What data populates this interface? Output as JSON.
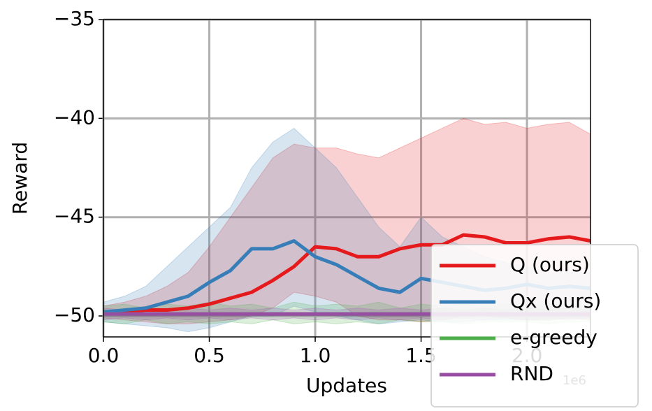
{
  "chart_data": {
    "type": "line",
    "xlabel": "Updates",
    "ylabel": "Reward",
    "x_offset_label": "1e6",
    "x": [
      0.0,
      0.1,
      0.2,
      0.3,
      0.4,
      0.5,
      0.6,
      0.7,
      0.8,
      0.9,
      1.0,
      1.1,
      1.2,
      1.3,
      1.4,
      1.5,
      1.6,
      1.7,
      1.8,
      1.9,
      2.0,
      2.1,
      2.2,
      2.3
    ],
    "xlim": [
      0,
      2.3
    ],
    "xticks": [
      {
        "value": 0,
        "label": "0.0"
      },
      {
        "value": 0.5,
        "label": "0.5"
      },
      {
        "value": 1,
        "label": "1.0"
      },
      {
        "value": 1.5,
        "label": "1.5"
      },
      {
        "value": 2,
        "label": "2.0"
      }
    ],
    "ylim": [
      -51.06,
      -35
    ],
    "yticks": [
      {
        "value": -35,
        "label": "−35"
      },
      {
        "value": -40,
        "label": "−40"
      },
      {
        "value": -45,
        "label": "−45"
      },
      {
        "value": -50,
        "label": "−50"
      }
    ],
    "grid": true,
    "legend": "lower right",
    "series": [
      {
        "name": "Q (ours)",
        "color": "#e41a1c",
        "values": [
          -49.8,
          -49.8,
          -49.7,
          -49.7,
          -49.6,
          -49.4,
          -49.1,
          -48.8,
          -48.2,
          -47.5,
          -46.5,
          -46.6,
          -47.0,
          -47.0,
          -46.6,
          -46.4,
          -46.4,
          -45.9,
          -46.0,
          -46.3,
          -46.3,
          -46.1,
          -46.0,
          -46.2
        ],
        "upper": [
          -49.5,
          -49.3,
          -49.0,
          -48.5,
          -47.8,
          -46.5,
          -45.0,
          -43.5,
          -42.0,
          -41.3,
          -41.5,
          -41.5,
          -41.8,
          -42.0,
          -41.5,
          -41.0,
          -40.5,
          -40.0,
          -40.3,
          -40.2,
          -40.5,
          -40.3,
          -40.2,
          -40.8
        ],
        "lower": [
          -50.1,
          -50.2,
          -50.3,
          -50.4,
          -50.4,
          -50.3,
          -50.2,
          -50.0,
          -49.6,
          -48.8,
          -49.0,
          -49.3,
          -50.0,
          -50.2,
          -50.2,
          -50.3,
          -50.2,
          -50.0,
          -50.0,
          -50.1,
          -50.2,
          -50.2,
          -50.1,
          -50.2
        ]
      },
      {
        "name": "Qx (ours)",
        "color": "#377eb8",
        "values": [
          -49.8,
          -49.7,
          -49.6,
          -49.3,
          -49.0,
          -48.3,
          -47.7,
          -46.6,
          -46.6,
          -46.2,
          -47.0,
          -47.4,
          -48.0,
          -48.6,
          -48.8,
          -48.1,
          -48.3,
          -48.5,
          -48.7,
          -48.6,
          -48.4,
          -48.6,
          -48.5,
          -48.6
        ],
        "upper": [
          -49.3,
          -49.0,
          -48.5,
          -47.5,
          -46.5,
          -45.5,
          -44.5,
          -42.5,
          -41.2,
          -40.5,
          -41.5,
          -42.5,
          -44.0,
          -45.5,
          -46.5,
          -45.0,
          -46.0,
          -46.5,
          -47.0,
          -47.3,
          -47.5,
          -47.8,
          -47.8,
          -47.8
        ],
        "lower": [
          -50.3,
          -50.4,
          -50.5,
          -50.6,
          -50.8,
          -50.6,
          -50.3,
          -50.0,
          -50.0,
          -49.5,
          -49.8,
          -50.0,
          -50.2,
          -50.4,
          -50.3,
          -50.2,
          -50.3,
          -50.3,
          -50.2,
          -50.2,
          -50.2,
          -50.2,
          -50.1,
          -50.1
        ]
      },
      {
        "name": "e-greedy",
        "color": "#4daf4a",
        "values": [
          -49.9,
          -49.9,
          -49.9,
          -49.9,
          -49.9,
          -49.9,
          -49.9,
          -49.9,
          -49.9,
          -49.9,
          -49.9,
          -49.9,
          -49.9,
          -49.9,
          -49.9,
          -49.9,
          -49.9,
          -49.9,
          -49.9,
          -49.9,
          -49.9,
          -49.9,
          -49.9,
          -49.9
        ],
        "upper": [
          -49.5,
          -49.4,
          -49.6,
          -49.4,
          -49.5,
          -49.3,
          -49.5,
          -49.4,
          -49.6,
          -49.3,
          -49.5,
          -49.4,
          -49.5,
          -49.3,
          -49.6,
          -49.4,
          -49.5,
          -49.4,
          -49.5,
          -49.4,
          -49.5,
          -49.4,
          -49.5,
          -49.5
        ],
        "lower": [
          -50.3,
          -50.4,
          -50.2,
          -50.4,
          -50.3,
          -50.4,
          -50.3,
          -50.4,
          -50.2,
          -50.4,
          -50.3,
          -50.4,
          -50.3,
          -50.4,
          -50.2,
          -50.3,
          -50.3,
          -50.4,
          -50.3,
          -50.3,
          -50.3,
          -50.4,
          -50.3,
          -50.3
        ]
      },
      {
        "name": "RND",
        "color": "#984ea3",
        "values": [
          -49.9,
          -49.9,
          -49.9,
          -49.9,
          -49.9,
          -49.9,
          -49.9,
          -49.9,
          -49.9,
          -49.9,
          -49.9,
          -49.9,
          -49.9,
          -49.9,
          -49.9,
          -49.9,
          -49.9,
          -49.9,
          -49.9,
          -49.9,
          -49.9,
          -49.9,
          -49.9,
          -49.9
        ],
        "upper": [
          -49.6,
          -49.7,
          -49.6,
          -49.7,
          -49.6,
          -49.7,
          -49.6,
          -49.7,
          -49.6,
          -49.7,
          -49.6,
          -49.7,
          -49.6,
          -49.7,
          -49.6,
          -49.7,
          -49.6,
          -49.7,
          -49.6,
          -49.7,
          -49.6,
          -49.7,
          -49.6,
          -49.7
        ],
        "lower": [
          -50.2,
          -50.1,
          -50.2,
          -50.1,
          -50.2,
          -50.1,
          -50.2,
          -50.1,
          -50.2,
          -50.1,
          -50.2,
          -50.1,
          -50.2,
          -50.1,
          -50.2,
          -50.1,
          -50.2,
          -50.1,
          -50.2,
          -50.1,
          -50.2,
          -50.1,
          -50.2,
          -50.1
        ]
      }
    ]
  }
}
